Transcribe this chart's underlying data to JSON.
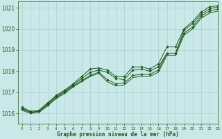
{
  "title": "Graphe pression niveau de la mer (hPa)",
  "background_color": "#cbe8e8",
  "line_color": "#1a5c1a",
  "grid_color": "#a8d0d0",
  "xlim": [
    -0.5,
    23
  ],
  "ylim": [
    1015.5,
    1021.3
  ],
  "yticks": [
    1016,
    1017,
    1018,
    1019,
    1020,
    1021
  ],
  "xticks": [
    0,
    1,
    2,
    3,
    4,
    5,
    6,
    7,
    8,
    9,
    10,
    11,
    12,
    13,
    14,
    15,
    16,
    17,
    18,
    19,
    20,
    21,
    22,
    23
  ],
  "series": [
    {
      "y": [
        1016.3,
        1016.1,
        1016.15,
        1016.5,
        1016.85,
        1017.1,
        1017.4,
        1017.75,
        1018.1,
        1018.15,
        1018.05,
        1017.75,
        1017.75,
        1018.2,
        1018.2,
        1018.1,
        1018.35,
        1019.15,
        1019.15,
        1020.0,
        1020.35,
        1020.8,
        1021.05,
        1021.1
      ],
      "marker": true
    },
    {
      "y": [
        1016.25,
        1016.05,
        1016.1,
        1016.45,
        1016.8,
        1017.05,
        1017.35,
        1017.65,
        1017.95,
        1018.05,
        1017.95,
        1017.65,
        1017.6,
        1018.05,
        1018.1,
        1018.0,
        1018.2,
        1018.85,
        1018.85,
        1019.95,
        1020.25,
        1020.7,
        1020.95,
        1021.05
      ],
      "marker": true
    },
    {
      "y": [
        1016.2,
        1016.05,
        1016.1,
        1016.4,
        1016.75,
        1017.0,
        1017.3,
        1017.55,
        1017.8,
        1017.95,
        1017.6,
        1017.4,
        1017.45,
        1017.8,
        1017.85,
        1017.85,
        1018.05,
        1018.85,
        1018.85,
        1019.8,
        1020.1,
        1020.6,
        1020.85,
        1020.95
      ],
      "marker": true
    },
    {
      "y": [
        1016.15,
        1016.0,
        1016.05,
        1016.35,
        1016.7,
        1016.95,
        1017.25,
        1017.5,
        1017.75,
        1017.9,
        1017.5,
        1017.3,
        1017.35,
        1017.7,
        1017.75,
        1017.75,
        1017.95,
        1018.75,
        1018.75,
        1019.7,
        1020.0,
        1020.5,
        1020.75,
        1020.85
      ],
      "marker": false
    }
  ]
}
